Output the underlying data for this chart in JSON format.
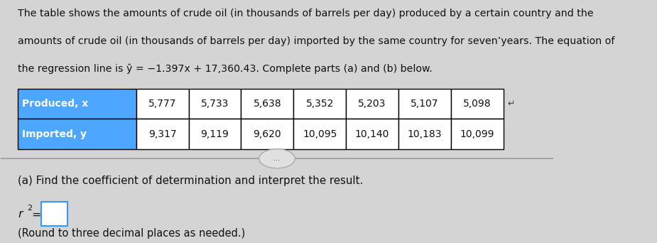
{
  "bg_color": "#d4d4d4",
  "panel_bg": "#e8e8e8",
  "header_line1": "The table shows the amounts of crude oil (in thousands of barrels per day) produced by a certain country and the",
  "header_line2": "amounts of crude oil (in thousands of barrels per day) imported by the same country for sevenʼyears. The equation of",
  "header_line3": "the regression line is ŷ = −1.397x + 17,360.43. Complete parts (a) and (b) below.",
  "table_header_bg": "#4da6ff",
  "table_header_text_color": "#ffffff",
  "table_cell_bg": "#ffffff",
  "table_border_color": "#000000",
  "row_labels": [
    "Produced, x",
    "Imported, y"
  ],
  "col_values_x": [
    "5,777",
    "5,733",
    "5,638",
    "5,352",
    "5,203",
    "5,107",
    "5,098"
  ],
  "col_values_y": [
    "9,317",
    "9,119",
    "9,620",
    "10,095",
    "10,140",
    "10,183",
    "10,099"
  ],
  "divider_color": "#999999",
  "dots_label": "...",
  "part_a_text": "(a) Find the coefficient of determination and interpret the result.",
  "round_note": "(Round to three decimal places as needed.)",
  "font_size_header": 10.2,
  "font_size_table": 10.0,
  "font_size_part": 10.8,
  "font_size_r2": 11.5,
  "font_size_round": 10.5
}
